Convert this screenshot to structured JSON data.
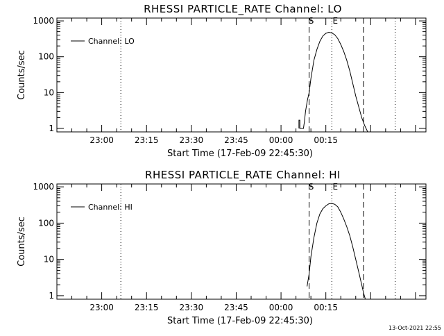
{
  "footer": {
    "timestamp": "13-Oct-2021 22:55"
  },
  "chart_data": [
    {
      "type": "line",
      "title": "RHESSI PARTICLE_RATE Channel: LO",
      "xlabel": "Start Time (17-Feb-09 22:45:30)",
      "ylabel": "Counts/sec",
      "yscale": "log",
      "ylim": [
        0.8,
        1200
      ],
      "xlim_minutes": [
        0,
        123.5
      ],
      "x_tick_labels": [
        "23:00",
        "23:15",
        "23:30",
        "23:45",
        "00:00",
        "00:15"
      ],
      "x_tick_minutes": [
        15,
        30,
        45,
        60,
        75,
        90
      ],
      "y_tick_labels": [
        "1",
        "10",
        "100",
        "1000"
      ],
      "y_tick_values": [
        1,
        10,
        100,
        1000
      ],
      "legend": {
        "label": "Channel: LO",
        "placement": "top-left"
      },
      "markers": {
        "s_label": "S",
        "e_label": "E"
      },
      "vlines": [
        {
          "minute": 21.4,
          "style": "dotted"
        },
        {
          "minute": 84.4,
          "style": "dashed"
        },
        {
          "minute": 92.0,
          "style": "dotted"
        },
        {
          "minute": 102.6,
          "style": "dashed"
        },
        {
          "minute": 113.2,
          "style": "dotted"
        }
      ],
      "series": [
        {
          "name": "Channel: LO",
          "x": [
            81.0,
            81.0,
            81.3,
            81.3,
            82.5,
            82.8,
            83.2,
            83.8,
            84.4,
            85.0,
            86.0,
            87.0,
            88.0,
            89.0,
            90.0,
            91.0,
            92.0,
            93.0,
            94.0,
            95.0,
            96.0,
            97.0,
            98.0,
            99.0,
            100.0,
            101.0,
            102.0,
            103.0,
            104.0
          ],
          "y": [
            1.0,
            1.7,
            1.7,
            1.0,
            1.0,
            1.5,
            3.0,
            6.0,
            10.0,
            25,
            80,
            160,
            270,
            380,
            450,
            480,
            460,
            410,
            320,
            220,
            140,
            80,
            40,
            18,
            8,
            4,
            2,
            1.2,
            0.75
          ]
        }
      ]
    },
    {
      "type": "line",
      "title": "RHESSI PARTICLE_RATE Channel: HI",
      "xlabel": "Start Time (17-Feb-09 22:45:30)",
      "ylabel": "Counts/sec",
      "yscale": "log",
      "ylim": [
        0.8,
        1200
      ],
      "xlim_minutes": [
        0,
        123.5
      ],
      "x_tick_labels": [
        "23:00",
        "23:15",
        "23:30",
        "23:45",
        "00:00",
        "00:15"
      ],
      "x_tick_minutes": [
        15,
        30,
        45,
        60,
        75,
        90
      ],
      "y_tick_labels": [
        "1",
        "10",
        "100",
        "1000"
      ],
      "y_tick_values": [
        1,
        10,
        100,
        1000
      ],
      "legend": {
        "label": "Channel: HI",
        "placement": "top-left"
      },
      "markers": {
        "s_label": "S",
        "e_label": "E"
      },
      "vlines": [
        {
          "minute": 21.4,
          "style": "dotted"
        },
        {
          "minute": 84.4,
          "style": "dashed"
        },
        {
          "minute": 92.0,
          "style": "dotted"
        },
        {
          "minute": 102.6,
          "style": "dashed"
        },
        {
          "minute": 113.2,
          "style": "dotted"
        }
      ],
      "series": [
        {
          "name": "Channel: HI",
          "x": [
            83.7,
            84.4,
            85.0,
            86.0,
            87.0,
            88.0,
            89.0,
            90.0,
            91.0,
            92.0,
            93.0,
            94.0,
            95.0,
            96.0,
            97.0,
            98.0,
            99.0,
            100.0,
            101.0,
            102.0,
            102.6,
            103.2
          ],
          "y": [
            1.8,
            4.0,
            12,
            40,
            100,
            180,
            250,
            300,
            340,
            350,
            330,
            280,
            200,
            130,
            80,
            45,
            22,
            10,
            4.5,
            2.0,
            1.2,
            0.8
          ]
        }
      ]
    }
  ]
}
